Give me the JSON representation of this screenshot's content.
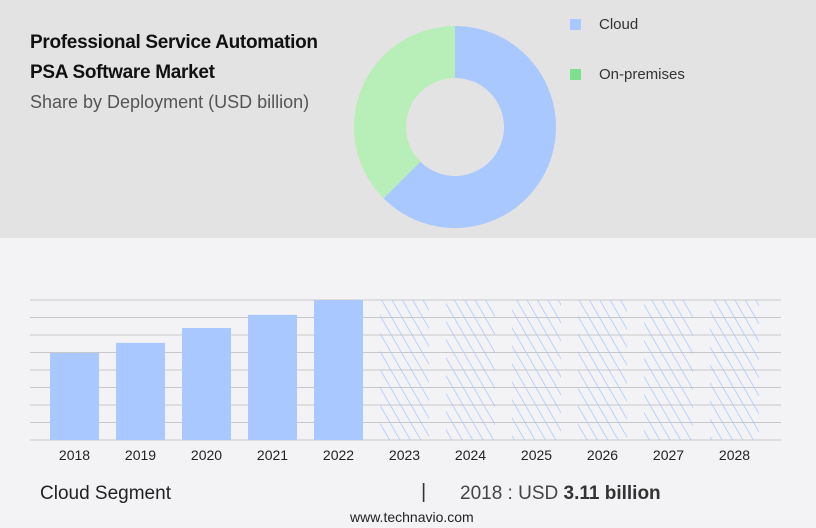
{
  "header": {
    "title_line1": "Professional Service Automation",
    "title_line2": "PSA Software Market",
    "subtitle": "Share by Deployment (USD billion)"
  },
  "chart_data": [
    {
      "type": "pie",
      "title": "Share by Deployment (USD billion)",
      "donut": true,
      "slices": [
        {
          "name": "Cloud",
          "value": 62.5,
          "color": "#a8c8ff"
        },
        {
          "name": "On-premises",
          "value": 37.5,
          "color": "#b8eeb8"
        }
      ],
      "legend": [
        {
          "label": "Cloud",
          "color": "#a8c8ff"
        },
        {
          "label": "On-premises",
          "color": "#7ddf8f"
        }
      ],
      "legend_position": "top-right"
    },
    {
      "type": "bar",
      "title": "Cloud Segment",
      "categories": [
        "2018",
        "2019",
        "2020",
        "2021",
        "2022",
        "2023",
        "2024",
        "2025",
        "2026",
        "2027",
        "2028"
      ],
      "values": [
        3.11,
        3.47,
        4.0,
        4.47,
        5.0,
        5.0,
        5.0,
        5.0,
        5.0,
        5.0,
        5.0
      ],
      "forecast": [
        false,
        false,
        false,
        false,
        false,
        true,
        true,
        true,
        true,
        true,
        true
      ],
      "ylim": [
        0,
        5
      ],
      "grid": true,
      "color": "#a8c8ff"
    }
  ],
  "footer": {
    "segment": "Cloud Segment",
    "separator": "|",
    "year_label": "2018 : USD",
    "value": "3.11 billion",
    "url": "www.technavio.com"
  }
}
